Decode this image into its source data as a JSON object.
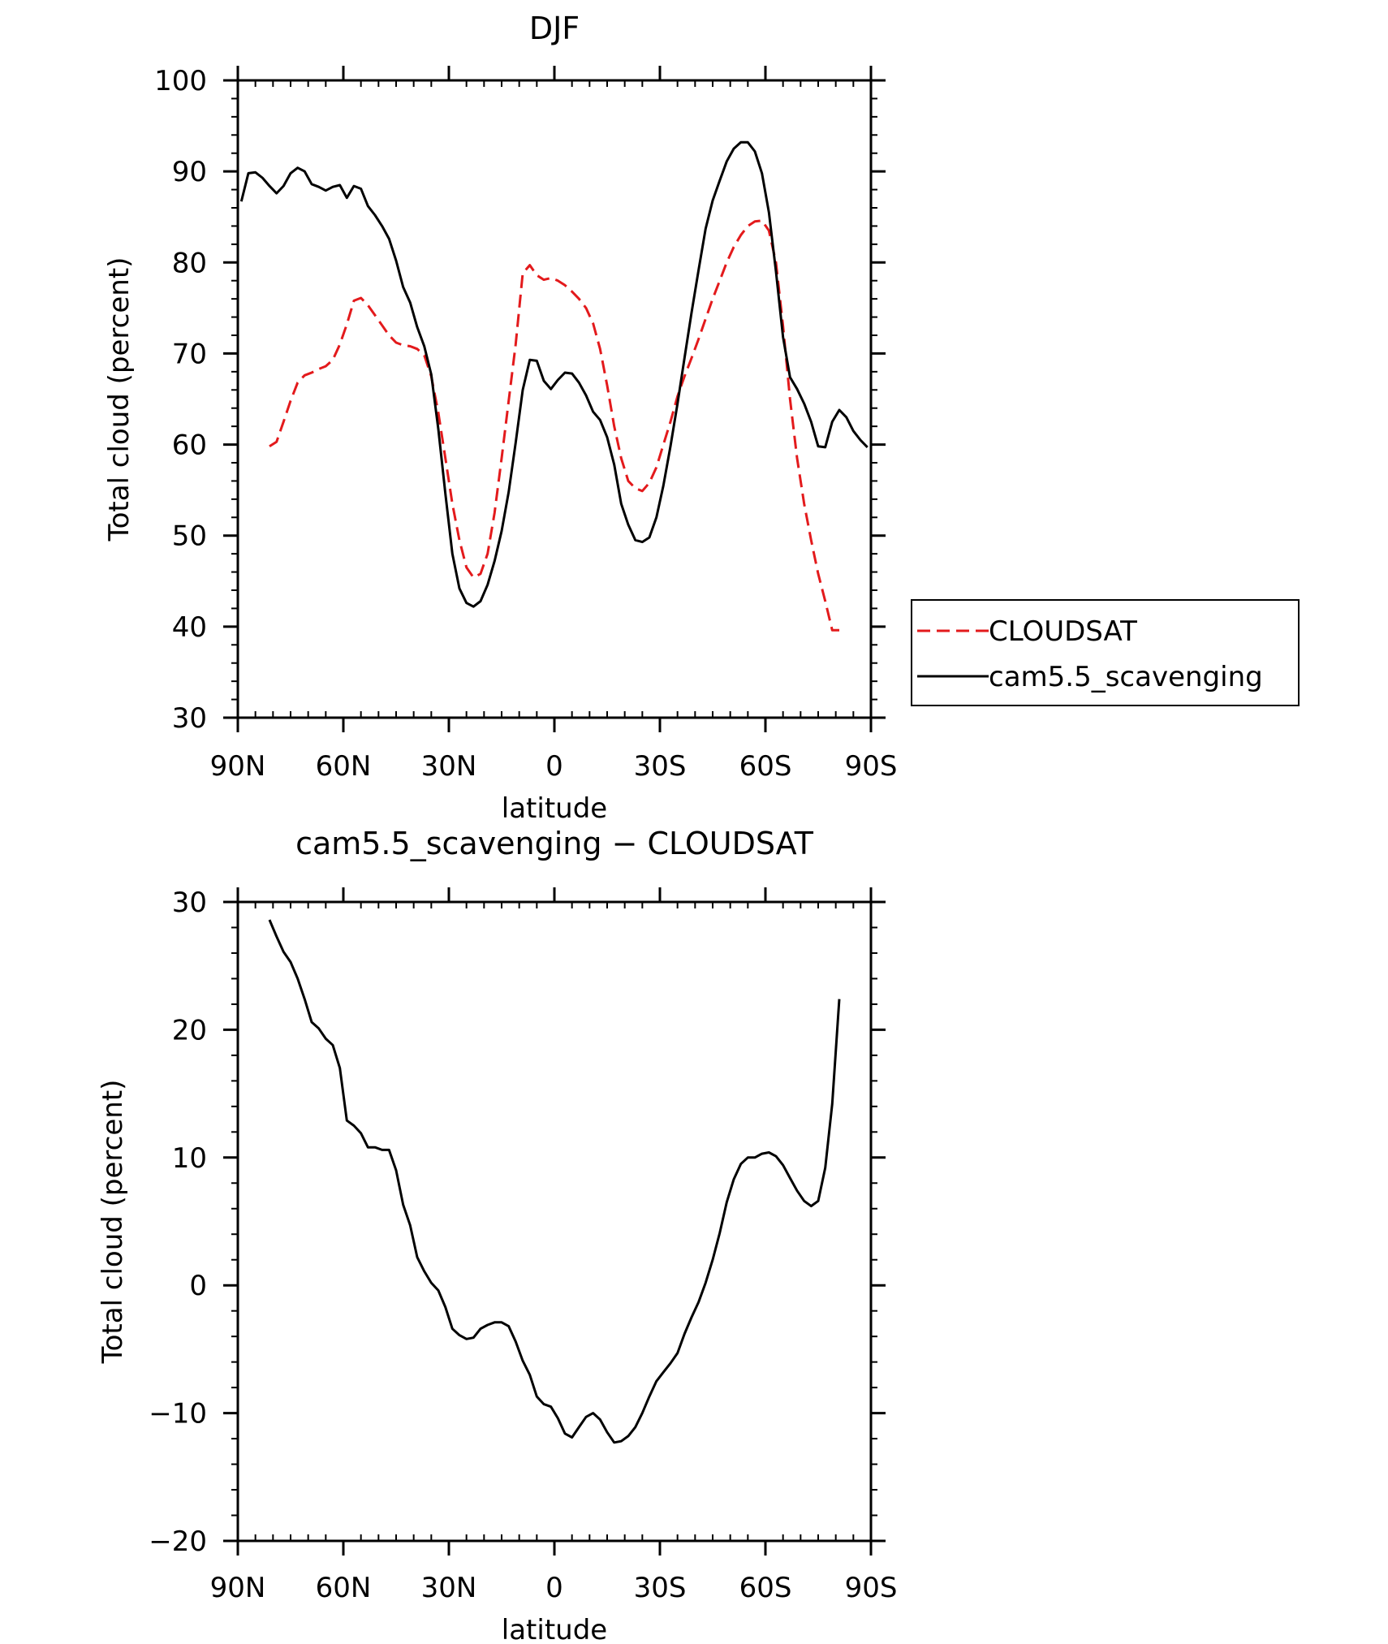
{
  "chart_data": [
    {
      "type": "line",
      "title": "DJF",
      "xlabel": "latitude",
      "ylabel": "Total cloud (percent)",
      "xlim": [
        90,
        -90
      ],
      "ylim": [
        30,
        100
      ],
      "yticks": [
        30,
        40,
        50,
        60,
        70,
        80,
        90,
        100
      ],
      "ytick_labels": [
        "30",
        "40",
        "50",
        "60",
        "70",
        "80",
        "90",
        "100"
      ],
      "xticks": [
        90,
        60,
        30,
        0,
        -30,
        -60,
        -90
      ],
      "xtick_labels": [
        "90N",
        "60N",
        "30N",
        "0",
        "30S",
        "60S",
        "90S"
      ],
      "legend_position": "right",
      "series": [
        {
          "name": "CLOUDSAT",
          "color": "#e31a1c",
          "dash": "dashed",
          "x": [
            81,
            79,
            77,
            75,
            73,
            71,
            69,
            67,
            65,
            63,
            61,
            59,
            57,
            55,
            53,
            51,
            49,
            47,
            45,
            43,
            41,
            39,
            37,
            35,
            33,
            31,
            29,
            27,
            25,
            23,
            21,
            19,
            17,
            15,
            13,
            11,
            9,
            7,
            5,
            3,
            1,
            -1,
            -3,
            -5,
            -7,
            -9,
            -11,
            -13,
            -15,
            -17,
            -19,
            -21,
            -23,
            -25,
            -27,
            -29,
            -31,
            -33,
            -35,
            -37,
            -39,
            -41,
            -43,
            -45,
            -47,
            -49,
            -51,
            -53,
            -55,
            -57,
            -59,
            -61,
            -63,
            -65,
            -67,
            -69,
            -71,
            -73,
            -75,
            -77,
            -79,
            -81
          ],
          "y": [
            59.8,
            60.3,
            62.5,
            64.8,
            66.8,
            67.6,
            67.9,
            68.3,
            68.6,
            69.3,
            71.0,
            73.2,
            75.8,
            76.1,
            75.3,
            74.2,
            73.1,
            72.0,
            71.2,
            70.9,
            70.8,
            70.5,
            69.8,
            67.5,
            63.5,
            58.5,
            53.5,
            49.5,
            46.5,
            45.4,
            45.8,
            48.0,
            52.5,
            58.5,
            64.8,
            71.0,
            78.8,
            79.7,
            78.6,
            78.1,
            78.3,
            78.0,
            77.5,
            76.8,
            76.0,
            75.0,
            73.3,
            70.5,
            66.5,
            62.0,
            58.5,
            56.0,
            55.2,
            54.9,
            55.8,
            57.5,
            60.0,
            62.5,
            65.3,
            67.5,
            69.5,
            71.6,
            73.8,
            76.0,
            78.0,
            80.0,
            81.7,
            83.0,
            84.0,
            84.5,
            84.6,
            83.5,
            80.0,
            73.0,
            65.0,
            58.5,
            53.5,
            49.5,
            45.8,
            42.8,
            39.6,
            39.6
          ]
        },
        {
          "name": "cam5.5_scavenging",
          "color": "#000000",
          "dash": "solid",
          "x": [
            89,
            87,
            85,
            83,
            81,
            79,
            77,
            75,
            73,
            71,
            69,
            67,
            65,
            63,
            61,
            59,
            57,
            55,
            53,
            51,
            49,
            47,
            45,
            43,
            41,
            39,
            37,
            35,
            33,
            31,
            29,
            27,
            25,
            23,
            21,
            19,
            17,
            15,
            13,
            11,
            9,
            7,
            5,
            3,
            1,
            -1,
            -3,
            -5,
            -7,
            -9,
            -11,
            -13,
            -15,
            -17,
            -19,
            -21,
            -23,
            -25,
            -27,
            -29,
            -31,
            -33,
            -35,
            -37,
            -39,
            -41,
            -43,
            -45,
            -47,
            -49,
            -51,
            -53,
            -55,
            -57,
            -59,
            -61,
            -63,
            -65,
            -67,
            -69,
            -71,
            -73,
            -75,
            -77,
            -79,
            -81,
            -83,
            -85,
            -87,
            -89
          ],
          "y": [
            86.7,
            89.8,
            89.9,
            89.3,
            88.4,
            87.6,
            88.4,
            89.8,
            90.4,
            90.0,
            88.6,
            88.3,
            87.9,
            88.3,
            88.5,
            87.1,
            88.4,
            88.1,
            86.2,
            85.2,
            84.0,
            82.6,
            80.2,
            77.3,
            75.6,
            72.9,
            70.8,
            67.7,
            61.7,
            54.6,
            48.0,
            44.2,
            42.6,
            42.2,
            42.8,
            44.6,
            47.2,
            50.5,
            54.8,
            60.2,
            66.0,
            69.3,
            69.2,
            67.0,
            66.1,
            67.1,
            67.9,
            67.8,
            66.8,
            65.4,
            63.6,
            62.7,
            60.8,
            57.8,
            53.5,
            51.2,
            49.5,
            49.3,
            49.8,
            52.0,
            55.5,
            59.8,
            64.5,
            69.5,
            74.5,
            79.2,
            83.7,
            86.8,
            89.0,
            91.1,
            92.5,
            93.2,
            93.2,
            92.2,
            89.8,
            85.5,
            79.0,
            71.8,
            67.4,
            66.1,
            64.5,
            62.5,
            59.8,
            59.7,
            62.5,
            63.8,
            63.0,
            61.5,
            60.5,
            59.7
          ]
        }
      ]
    },
    {
      "type": "line",
      "title": "cam5.5_scavenging − CLOUDSAT",
      "xlabel": "latitude",
      "ylabel": "Total cloud (percent)",
      "xlim": [
        90,
        -90
      ],
      "ylim": [
        -20,
        30
      ],
      "yticks": [
        -20,
        -10,
        0,
        10,
        20,
        30
      ],
      "ytick_labels": [
        "−20",
        "−10",
        "0",
        "10",
        "20",
        "30"
      ],
      "xticks": [
        90,
        60,
        30,
        0,
        -30,
        -60,
        -90
      ],
      "xtick_labels": [
        "90N",
        "60N",
        "30N",
        "0",
        "30S",
        "60S",
        "90S"
      ],
      "series": [
        {
          "color": "#000000",
          "dash": "solid",
          "x": [
            81,
            79,
            77,
            75,
            73,
            71,
            69,
            67,
            65,
            63,
            61,
            59,
            57,
            55,
            53,
            51,
            49,
            47,
            45,
            43,
            41,
            39,
            37,
            35,
            33,
            31,
            29,
            27,
            25,
            23,
            21,
            19,
            17,
            15,
            13,
            11,
            9,
            7,
            5,
            3,
            1,
            -1,
            -3,
            -5,
            -7,
            -9,
            -11,
            -13,
            -15,
            -17,
            -19,
            -21,
            -23,
            -25,
            -27,
            -29,
            -31,
            -33,
            -35,
            -37,
            -39,
            -41,
            -43,
            -45,
            -47,
            -49,
            -51,
            -53,
            -55,
            -57,
            -59,
            -61,
            -63,
            -65,
            -67,
            -69,
            -71,
            -73,
            -75,
            -77,
            -79,
            -81
          ],
          "y": [
            28.6,
            27.3,
            26.1,
            25.3,
            24.0,
            22.4,
            20.6,
            20.1,
            19.3,
            18.8,
            17.0,
            12.9,
            12.5,
            11.9,
            10.8,
            10.8,
            10.6,
            10.6,
            9.0,
            6.3,
            4.7,
            2.2,
            1.1,
            0.2,
            -0.4,
            -1.7,
            -3.4,
            -3.9,
            -4.2,
            -4.1,
            -3.4,
            -3.1,
            -2.9,
            -2.9,
            -3.2,
            -4.4,
            -5.9,
            -7.0,
            -8.7,
            -9.3,
            -9.5,
            -10.4,
            -11.6,
            -11.9,
            -11.1,
            -10.3,
            -10.0,
            -10.5,
            -11.5,
            -12.3,
            -12.2,
            -11.8,
            -11.1,
            -10.0,
            -8.7,
            -7.5,
            -6.8,
            -6.1,
            -5.3,
            -3.8,
            -2.5,
            -1.3,
            0.2,
            2.0,
            4.1,
            6.5,
            8.3,
            9.5,
            10.0,
            10.0,
            10.3,
            10.4,
            10.1,
            9.4,
            8.4,
            7.4,
            6.6,
            6.2,
            6.6,
            9.2,
            14.2,
            22.4
          ]
        }
      ]
    }
  ]
}
